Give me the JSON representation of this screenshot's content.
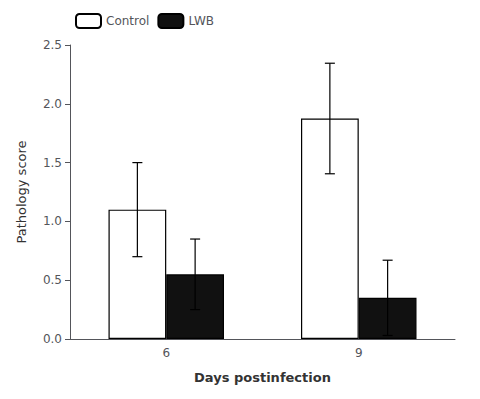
{
  "chart_data": {
    "type": "bar",
    "xlabel": "Days postinfection",
    "ylabel": "Pathology score",
    "categories": [
      "6",
      "9"
    ],
    "series": [
      {
        "name": "Control",
        "color": "#ffffff",
        "values": [
          1.1,
          1.875
        ],
        "errors": [
          0.4,
          0.47
        ]
      },
      {
        "name": "LWB",
        "color": "#111111",
        "values": [
          0.55,
          0.35
        ],
        "errors": [
          0.3,
          0.32
        ]
      }
    ],
    "ylim": [
      0,
      2.5
    ],
    "yticks": [
      {
        "value": 0,
        "label": "0.0"
      },
      0.5,
      {
        "value": 1,
        "label": "1.0"
      },
      1.5,
      {
        "value": 2,
        "label": "2.0"
      },
      2.5
    ],
    "grid": false,
    "legend": "upper left"
  }
}
